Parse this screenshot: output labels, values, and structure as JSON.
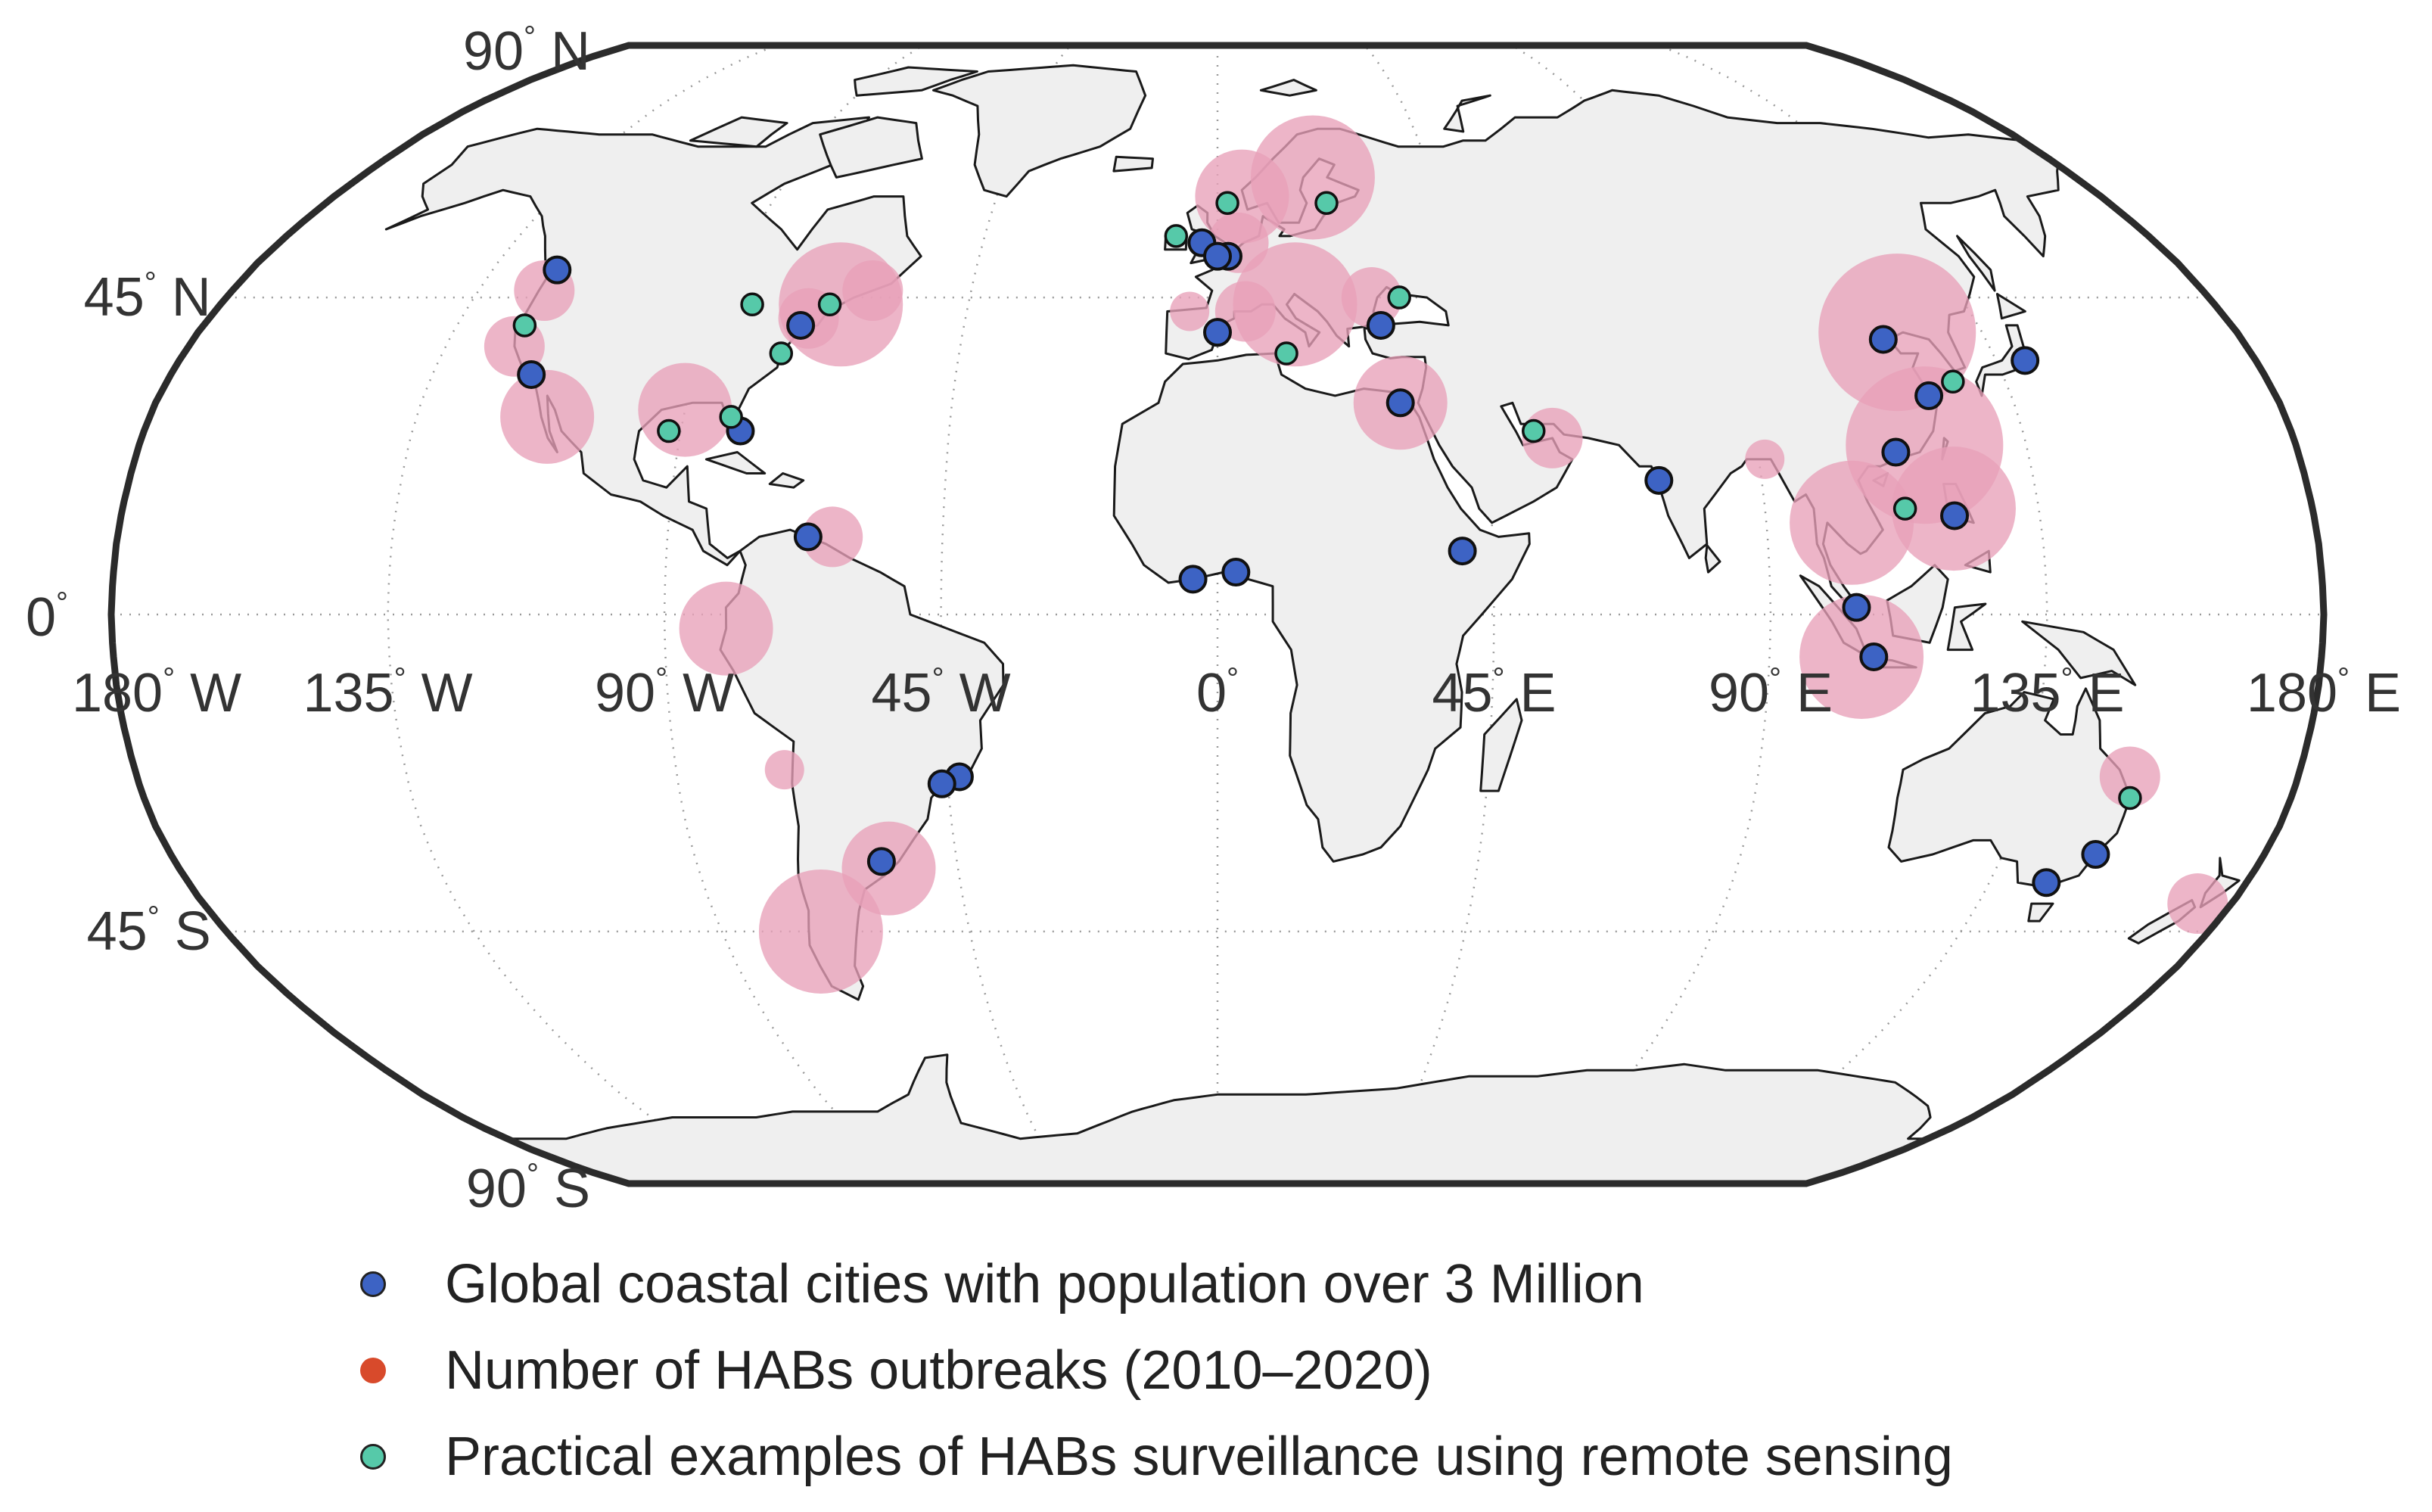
{
  "map": {
    "projection": "Robinson",
    "graticule": "dotted",
    "land_color": "#efefef",
    "coast_color": "#1a1a1a",
    "lat_labels": [
      {
        "lat": 90,
        "text": "90",
        "hemi": "N"
      },
      {
        "lat": 45,
        "text": "45",
        "hemi": "N"
      },
      {
        "lat": 0,
        "text": "0",
        "hemi": ""
      },
      {
        "lat": -45,
        "text": "45",
        "hemi": "S"
      },
      {
        "lat": -90,
        "text": "90",
        "hemi": "S"
      }
    ],
    "lon_labels": [
      {
        "lon": -180,
        "text": "180",
        "hemi": "W"
      },
      {
        "lon": -135,
        "text": "135",
        "hemi": "W"
      },
      {
        "lon": -90,
        "text": "90",
        "hemi": "W"
      },
      {
        "lon": -45,
        "text": "45",
        "hemi": "W"
      },
      {
        "lon": 0,
        "text": "0",
        "hemi": ""
      },
      {
        "lon": 45,
        "text": "45",
        "hemi": "E"
      },
      {
        "lon": 90,
        "text": "90",
        "hemi": "E"
      },
      {
        "lon": 135,
        "text": "135",
        "hemi": "E"
      },
      {
        "lon": 180,
        "text": "180",
        "hemi": "E"
      }
    ]
  },
  "legend": {
    "cities": {
      "label": "Global coastal cities with population over 3 Million",
      "color": "#3d63c4"
    },
    "habs": {
      "label": "Number of HABs outbreaks (2010–2020)",
      "color": "#d84a2b"
    },
    "surveillance": {
      "label": "Practical examples of HABs surveillance using remote sensing",
      "color": "#56c9a9"
    }
  },
  "layers": {
    "habs_color": "#e8a0b8",
    "habs_outbreaks": [
      {
        "lon": -123,
        "lat": 46,
        "size": "small"
      },
      {
        "lon": -123,
        "lat": 38,
        "size": "small"
      },
      {
        "lon": -113,
        "lat": 28,
        "size": "medium"
      },
      {
        "lon": -90,
        "lat": 29,
        "size": "medium"
      },
      {
        "lon": -73,
        "lat": 42,
        "size": "small"
      },
      {
        "lon": -68,
        "lat": 44,
        "size": "large"
      },
      {
        "lon": -63,
        "lat": 46,
        "size": "small"
      },
      {
        "lon": -63,
        "lat": 11,
        "size": "small"
      },
      {
        "lon": -80,
        "lat": -2,
        "size": "medium"
      },
      {
        "lon": -72,
        "lat": -22,
        "size": "tiny"
      },
      {
        "lon": -57,
        "lat": -36,
        "size": "medium"
      },
      {
        "lon": -72,
        "lat": -45,
        "size": "large"
      },
      {
        "lon": 5,
        "lat": 60,
        "size": "medium"
      },
      {
        "lon": 20,
        "lat": 63,
        "size": "large"
      },
      {
        "lon": 4,
        "lat": 53,
        "size": "small"
      },
      {
        "lon": -5,
        "lat": 43,
        "size": "tiny"
      },
      {
        "lon": 5,
        "lat": 43,
        "size": "small"
      },
      {
        "lon": 14,
        "lat": 44,
        "size": "large"
      },
      {
        "lon": 28,
        "lat": 45,
        "size": "small"
      },
      {
        "lon": 31,
        "lat": 30,
        "size": "medium"
      },
      {
        "lon": 56,
        "lat": 25,
        "size": "small"
      },
      {
        "lon": 91,
        "lat": 22,
        "size": "tiny"
      },
      {
        "lon": 120,
        "lat": 40,
        "size": "xlarge"
      },
      {
        "lon": 118,
        "lat": 24,
        "size": "xlarge"
      },
      {
        "lon": 104,
        "lat": 13,
        "size": "large"
      },
      {
        "lon": 121,
        "lat": 15,
        "size": "large"
      },
      {
        "lon": 105,
        "lat": -6,
        "size": "large"
      },
      {
        "lon": 152,
        "lat": -23,
        "size": "small"
      },
      {
        "lon": 174,
        "lat": -41,
        "size": "small"
      }
    ],
    "coastal_cities": [
      {
        "lon": -123,
        "lat": 49
      },
      {
        "lon": -118,
        "lat": 34
      },
      {
        "lon": -74,
        "lat": 41
      },
      {
        "lon": -80,
        "lat": 26
      },
      {
        "lon": -67,
        "lat": 11
      },
      {
        "lon": -58,
        "lat": -35
      },
      {
        "lon": -43,
        "lat": -23
      },
      {
        "lon": -46,
        "lat": -24
      },
      {
        "lon": -4,
        "lat": 5
      },
      {
        "lon": 3,
        "lat": 6
      },
      {
        "lon": -3,
        "lat": 53
      },
      {
        "lon": 2,
        "lat": 51
      },
      {
        "lon": 0,
        "lat": 51
      },
      {
        "lon": 0,
        "lat": 40
      },
      {
        "lon": 29,
        "lat": 41
      },
      {
        "lon": 31,
        "lat": 30
      },
      {
        "lon": 40,
        "lat": 9
      },
      {
        "lon": 73,
        "lat": 19
      },
      {
        "lon": 117,
        "lat": 39
      },
      {
        "lon": 121,
        "lat": 31
      },
      {
        "lon": 113,
        "lat": 23
      },
      {
        "lon": 121,
        "lat": 14
      },
      {
        "lon": 140,
        "lat": 36
      },
      {
        "lon": 104,
        "lat": 1
      },
      {
        "lon": 107,
        "lat": -6
      },
      {
        "lon": 151,
        "lat": -34
      },
      {
        "lon": 145,
        "lat": -38
      }
    ],
    "surveillance_sites": [
      {
        "lon": -123,
        "lat": 41
      },
      {
        "lon": -84,
        "lat": 44
      },
      {
        "lon": -70,
        "lat": 44
      },
      {
        "lon": -76,
        "lat": 37
      },
      {
        "lon": -82,
        "lat": 28
      },
      {
        "lon": -92,
        "lat": 26
      },
      {
        "lon": -8,
        "lat": 54
      },
      {
        "lon": 2,
        "lat": 59
      },
      {
        "lon": 22,
        "lat": 59
      },
      {
        "lon": 12,
        "lat": 37
      },
      {
        "lon": 33,
        "lat": 45
      },
      {
        "lon": 53,
        "lat": 26
      },
      {
        "lon": 126,
        "lat": 33
      },
      {
        "lon": 113,
        "lat": 15
      },
      {
        "lon": 153,
        "lat": -26
      }
    ]
  }
}
